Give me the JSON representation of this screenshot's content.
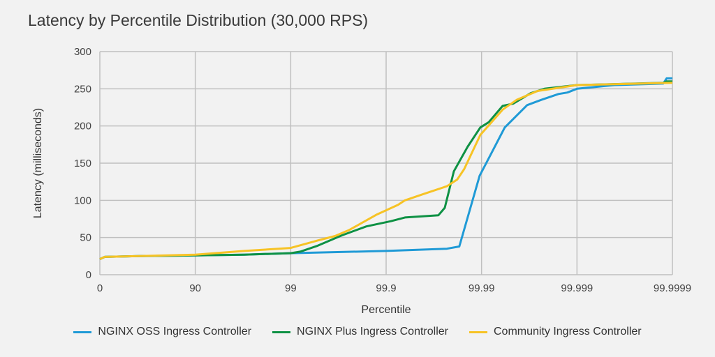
{
  "chart_data": {
    "type": "line",
    "title": "Latency by Percentile Distribution (30,000 RPS)",
    "xlabel": "Percentile",
    "ylabel": "Latency (milliseconds)",
    "x_scale": "percentile nines (log of 1 - p)",
    "x_ticks": [
      "0",
      "90",
      "99",
      "99.9",
      "99.99",
      "99.999",
      "99.9999"
    ],
    "x_tick_values": [
      0,
      90,
      99,
      99.9,
      99.99,
      99.999,
      99.9999
    ],
    "y_ticks": [
      "0",
      "50",
      "100",
      "150",
      "200",
      "250",
      "300"
    ],
    "ylim": [
      0,
      300
    ],
    "grid": true,
    "legend_position": "bottom",
    "series": [
      {
        "name": "NGINX OSS Ingress Controller",
        "color": "#1f9ad6",
        "x": [
          0,
          11.1,
          61.7,
          90,
          96.94,
          99,
          99.9,
          99.9769,
          99.9829,
          99.98953,
          99.99186,
          99.99429,
          99.99667,
          99.99762,
          99.99844,
          99.99874,
          99.999,
          99.999594,
          99.999875,
          99.999885,
          99.9999
        ],
        "y": [
          21,
          24,
          25,
          26,
          27,
          29,
          32,
          35,
          38,
          133,
          160,
          198,
          228,
          235,
          243,
          245,
          250,
          255,
          257,
          264,
          264
        ]
      },
      {
        "name": "NGINX Plus Ingress Controller",
        "color": "#0e9144",
        "x": [
          0,
          11.1,
          61.7,
          90,
          96.94,
          99,
          99.206,
          99.478,
          99.71,
          99.839,
          99.911,
          99.9365,
          99.9717,
          99.9757,
          99.9805,
          99.986,
          99.9897,
          99.99159,
          99.99399,
          99.99533,
          99.99694,
          99.99781,
          99.999,
          99.999875,
          99.999885,
          99.9999
        ],
        "y": [
          21,
          24,
          25,
          26,
          27,
          29,
          31,
          39,
          53,
          65,
          72,
          77,
          80,
          90,
          139,
          172,
          198,
          205,
          227,
          230,
          244,
          250,
          255,
          258,
          260,
          260
        ]
      },
      {
        "name": "Community Ingress Controller",
        "color": "#f7c325",
        "x": [
          0,
          11.1,
          61.7,
          90,
          96.94,
          99,
          99.478,
          99.657,
          99.755,
          99.875,
          99.925,
          99.9365,
          99.9583,
          99.9769,
          99.982,
          99.9848,
          99.9897,
          99.99399,
          99.9957,
          99.99741,
          99.999,
          99.9999
        ],
        "y": [
          21,
          24,
          25,
          27,
          32,
          36,
          46,
          52,
          60,
          81,
          94,
          100,
          108,
          119,
          128,
          142,
          188,
          222,
          235,
          247,
          255,
          258
        ]
      }
    ]
  }
}
